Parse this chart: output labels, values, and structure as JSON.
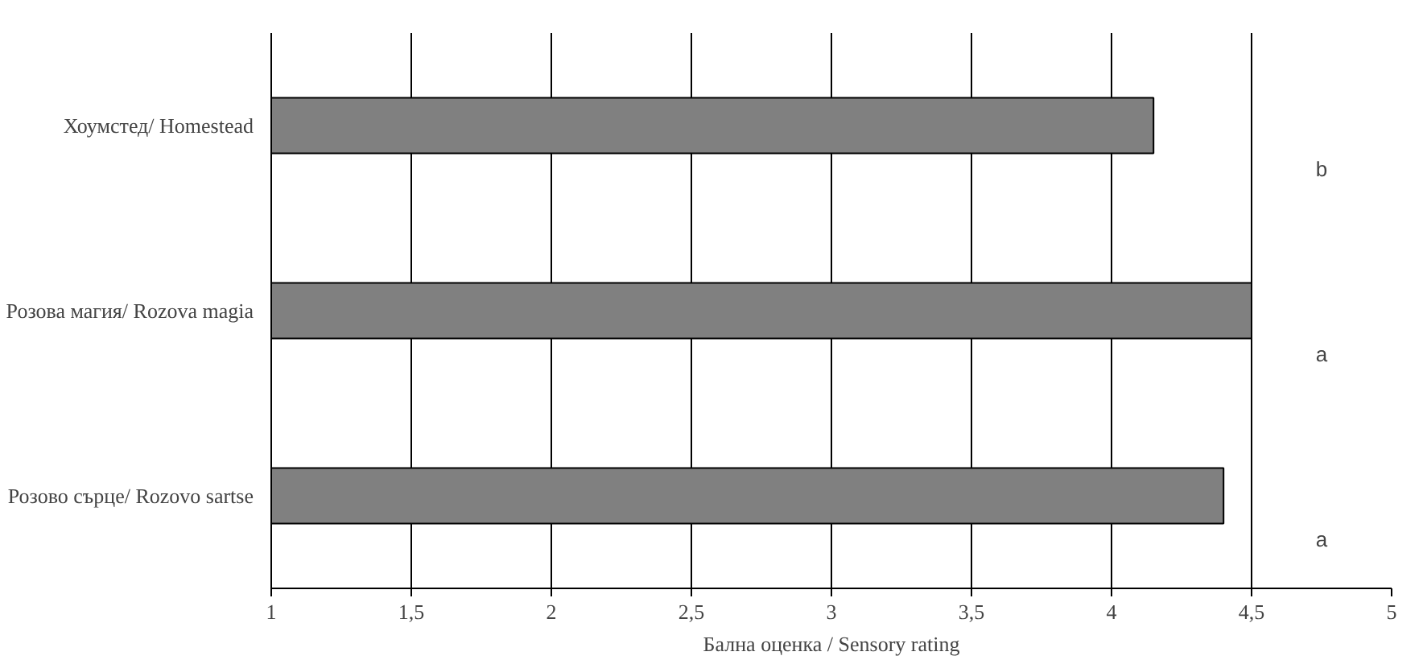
{
  "chart_data": {
    "type": "bar",
    "orientation": "horizontal",
    "xlabel": "Бална оценка / Sensory rating",
    "categories": [
      "Хоумстед/ Homestead",
      "Розова магия/ Rozova magia",
      "Розово сърце/ Rozovo sartse"
    ],
    "values": [
      4.15,
      4.5,
      4.4
    ],
    "color": "#808080",
    "xlim": [
      1,
      5
    ],
    "xticks": [
      1,
      {
        "value": 1.5,
        "label": "1,5"
      },
      2,
      {
        "value": 2.5,
        "label": "2,5"
      },
      3,
      {
        "value": 3.5,
        "label": "3,5"
      },
      4,
      {
        "value": 4.5,
        "label": "4,5"
      },
      5
    ],
    "grid": "x",
    "annotations": [
      "b",
      "a",
      "a"
    ]
  }
}
